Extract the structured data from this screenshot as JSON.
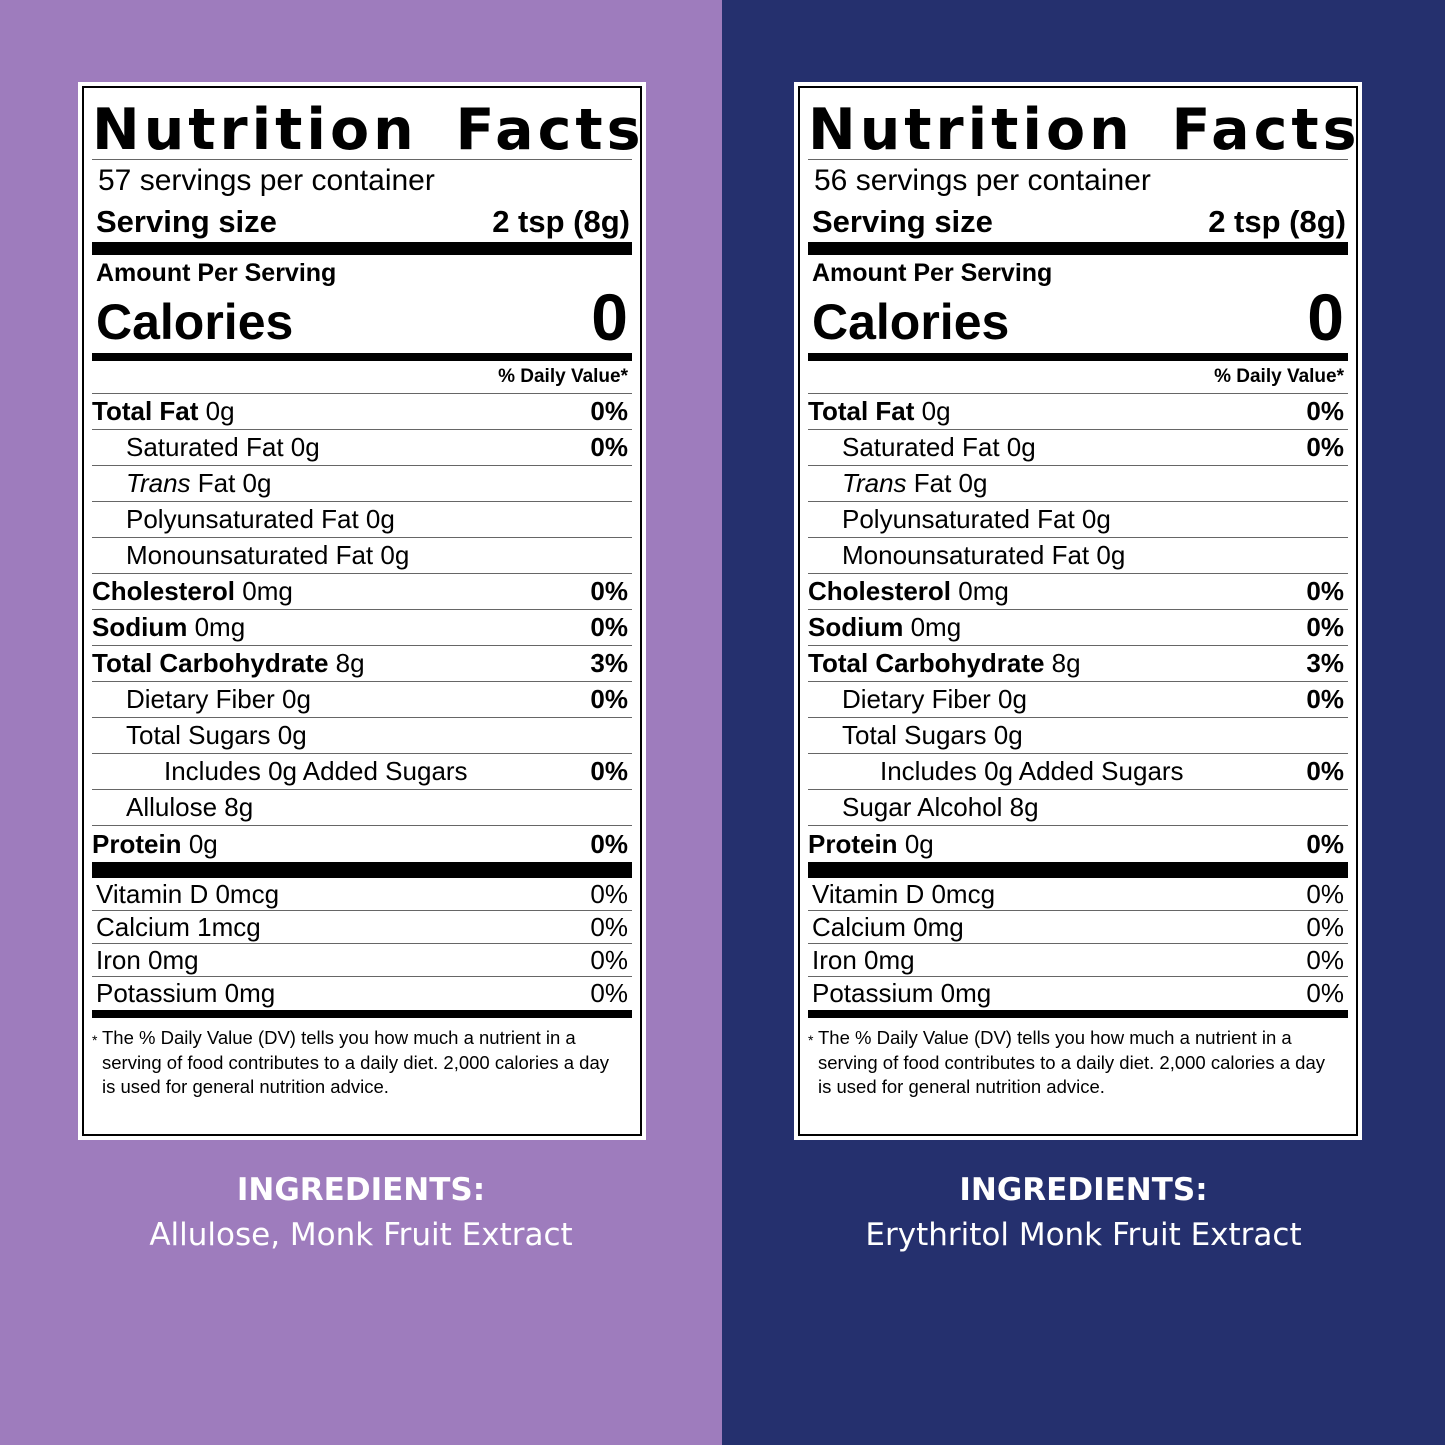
{
  "colors": {
    "left_bg": "#9e7cbd",
    "right_bg": "#25306e",
    "label_bg": "#ffffff",
    "text": "#000000"
  },
  "labels": [
    {
      "title": "Nutrition Facts",
      "servings": "57 servings per container",
      "serving_size_label": "Serving size",
      "serving_size_value": "2 tsp (8g)",
      "amount_per": "Amount Per Serving",
      "calories_label": "Calories",
      "calories_value": "0",
      "dv_header": "% Daily Value*",
      "nutrients": [
        {
          "name": "Total Fat",
          "amount": "0g",
          "pct": "0%"
        },
        {
          "name": "Saturated Fat 0g",
          "pct": "0%"
        },
        {
          "name": "Trans",
          "amount": "Fat 0g"
        },
        {
          "name": "Polyunsaturated Fat 0g"
        },
        {
          "name": "Monounsaturated Fat 0g"
        },
        {
          "name": "Cholesterol",
          "amount": "0mg",
          "pct": "0%"
        },
        {
          "name": "Sodium",
          "amount": "0mg",
          "pct": "0%"
        },
        {
          "name": "Total Carbohydrate",
          "amount": "8g",
          "pct": "3%"
        },
        {
          "name": "Dietary Fiber 0g",
          "pct": "0%"
        },
        {
          "name": "Total Sugars 0g"
        },
        {
          "name": "Includes 0g Added Sugars",
          "pct": "0%"
        },
        {
          "name": "Allulose 8g"
        },
        {
          "name": "Protein",
          "amount": "0g",
          "pct": "0%"
        }
      ],
      "vitamins": [
        {
          "name": "Vitamin D 0mcg",
          "pct": "0%"
        },
        {
          "name": "Calcium 1mcg",
          "pct": "0%"
        },
        {
          "name": "Iron 0mg",
          "pct": "0%"
        },
        {
          "name": "Potassium 0mg",
          "pct": "0%"
        }
      ],
      "footnote_star": "*",
      "footnote": "The % Daily Value (DV) tells you how much a nutrient in a serving of food contributes to a daily diet. 2,000 calories a day is used for general nutrition advice."
    },
    {
      "title": "Nutrition Facts",
      "servings": "56 servings per container",
      "serving_size_label": "Serving size",
      "serving_size_value": "2 tsp (8g)",
      "amount_per": "Amount Per Serving",
      "calories_label": "Calories",
      "calories_value": "0",
      "dv_header": "% Daily Value*",
      "nutrients": [
        {
          "name": "Total Fat",
          "amount": "0g",
          "pct": "0%"
        },
        {
          "name": "Saturated Fat 0g",
          "pct": "0%"
        },
        {
          "name": "Trans",
          "amount": "Fat 0g"
        },
        {
          "name": "Polyunsaturated Fat 0g"
        },
        {
          "name": "Monounsaturated Fat 0g"
        },
        {
          "name": "Cholesterol",
          "amount": "0mg",
          "pct": "0%"
        },
        {
          "name": "Sodium",
          "amount": "0mg",
          "pct": "0%"
        },
        {
          "name": "Total Carbohydrate",
          "amount": "8g",
          "pct": "3%"
        },
        {
          "name": "Dietary Fiber 0g",
          "pct": "0%"
        },
        {
          "name": "Total Sugars 0g"
        },
        {
          "name": "Includes 0g Added Sugars",
          "pct": "0%"
        },
        {
          "name": "Sugar Alcohol 8g"
        },
        {
          "name": "Protein",
          "amount": "0g",
          "pct": "0%"
        }
      ],
      "vitamins": [
        {
          "name": "Vitamin D 0mcg",
          "pct": "0%"
        },
        {
          "name": "Calcium 0mg",
          "pct": "0%"
        },
        {
          "name": "Iron 0mg",
          "pct": "0%"
        },
        {
          "name": "Potassium 0mg",
          "pct": "0%"
        }
      ],
      "footnote_star": "*",
      "footnote": "The % Daily Value (DV) tells you how much a nutrient in a serving of food contributes to a daily diet. 2,000 calories a day is used for general nutrition advice."
    }
  ],
  "ingredients": [
    {
      "title": "INGREDIENTS:",
      "list": "Allulose, Monk Fruit Extract"
    },
    {
      "title": "INGREDIENTS:",
      "list": "Erythritol Monk Fruit Extract"
    }
  ]
}
